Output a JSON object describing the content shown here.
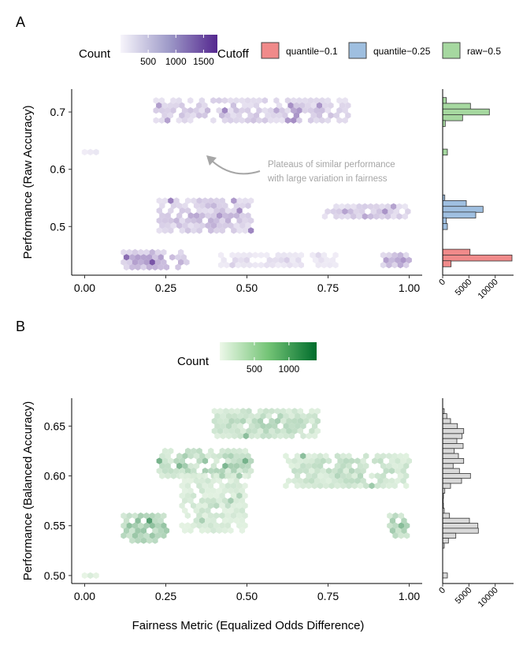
{
  "panel_labels": {
    "a": "A",
    "b": "B"
  },
  "shared": {
    "xlabel": "Fairness Metric (Equalized Odds Difference)",
    "x_ticks": [
      "0.00",
      "0.25",
      "0.50",
      "0.75",
      "1.00"
    ],
    "x_tick_values": [
      0,
      0.25,
      0.5,
      0.75,
      1.0
    ],
    "xlim": [
      -0.04,
      1.04
    ]
  },
  "legend_a": {
    "count_title": "Count",
    "count_ticks": [
      "500",
      "1000",
      "1500"
    ],
    "count_tick_values": [
      500,
      1000,
      1500
    ],
    "count_range": [
      0,
      1750
    ],
    "cutoff_title": "Cutoff",
    "cutoff_items": [
      {
        "label": "quantile−0.1",
        "color": "#F08A8A"
      },
      {
        "label": "quantile−0.25",
        "color": "#9FBFE0"
      },
      {
        "label": "raw−0.5",
        "color": "#A6D8A0"
      }
    ]
  },
  "legend_b": {
    "count_title": "Count",
    "count_ticks": [
      "500",
      "1000"
    ],
    "count_tick_values": [
      500,
      1000
    ],
    "count_range": [
      0,
      1400
    ]
  },
  "annotation_a": {
    "line1": "Plateaus of similar performance",
    "line2": "with large variation in fairness"
  },
  "colors": {
    "purple_low": "#F2F0F8",
    "purple_high": "#54278F",
    "green_low": "#EDF8E9",
    "green_high": "#006D2C",
    "hist_b": "#D9D9D9",
    "annotation": "#A6A6A6"
  },
  "chart_data": [
    {
      "type": "heatmap",
      "panel": "A",
      "title": "",
      "xlabel": "Fairness Metric (Equalized Odds Difference)",
      "ylabel": "Performance (Raw Accuracy)",
      "y_ticks": [
        "0.5",
        "0.6",
        "0.7"
      ],
      "y_tick_values": [
        0.5,
        0.6,
        0.7
      ],
      "ylim": [
        0.415,
        0.74
      ],
      "clusters": [
        {
          "x": [
            0.22,
            0.82
          ],
          "y": [
            0.68,
            0.72
          ],
          "peak": 900
        },
        {
          "x": [
            0.0,
            0.05
          ],
          "y": [
            0.625,
            0.63
          ],
          "peak": 250
        },
        {
          "x": [
            0.23,
            0.52
          ],
          "y": [
            0.49,
            0.545
          ],
          "peak": 1100
        },
        {
          "x": [
            0.74,
            1.0
          ],
          "y": [
            0.51,
            0.535
          ],
          "peak": 800
        },
        {
          "x": [
            0.12,
            0.32
          ],
          "y": [
            0.425,
            0.455
          ],
          "peak": 1700
        },
        {
          "x": [
            0.42,
            0.78
          ],
          "y": [
            0.43,
            0.45
          ],
          "peak": 250
        },
        {
          "x": [
            0.92,
            1.0
          ],
          "y": [
            0.43,
            0.45
          ],
          "peak": 1700
        }
      ],
      "marginal_histogram": {
        "x_ticks": [
          "0",
          "5000",
          "10000"
        ],
        "x_tick_values": [
          0,
          5000,
          10000
        ],
        "xlim": [
          0,
          13500
        ],
        "bars": [
          {
            "y": 0.72,
            "count": 700,
            "series": "raw−0.5"
          },
          {
            "y": 0.71,
            "count": 5300,
            "series": "raw−0.5"
          },
          {
            "y": 0.7,
            "count": 8900,
            "series": "raw−0.5"
          },
          {
            "y": 0.69,
            "count": 3800,
            "series": "raw−0.5"
          },
          {
            "y": 0.68,
            "count": 500,
            "series": "raw−0.5"
          },
          {
            "y": 0.63,
            "count": 900,
            "series": "raw−0.5"
          },
          {
            "y": 0.55,
            "count": 400,
            "series": "quantile−0.25"
          },
          {
            "y": 0.54,
            "count": 4500,
            "series": "quantile−0.25"
          },
          {
            "y": 0.53,
            "count": 7700,
            "series": "quantile−0.25"
          },
          {
            "y": 0.52,
            "count": 6300,
            "series": "quantile−0.25"
          },
          {
            "y": 0.51,
            "count": 700,
            "series": "quantile−0.25"
          },
          {
            "y": 0.5,
            "count": 900,
            "series": "quantile−0.25"
          },
          {
            "y": 0.455,
            "count": 5200,
            "series": "quantile−0.1"
          },
          {
            "y": 0.445,
            "count": 13200,
            "series": "quantile−0.1"
          },
          {
            "y": 0.435,
            "count": 1600,
            "series": "quantile−0.1"
          }
        ]
      }
    },
    {
      "type": "heatmap",
      "panel": "B",
      "title": "",
      "xlabel": "Fairness Metric (Equalized Odds Difference)",
      "ylabel": "Performance (Balanced Accuracy)",
      "y_ticks": [
        "0.50",
        "0.55",
        "0.60",
        "0.65"
      ],
      "y_tick_values": [
        0.5,
        0.55,
        0.6,
        0.65
      ],
      "ylim": [
        0.492,
        0.678
      ],
      "clusters": [
        {
          "x": [
            0.0,
            0.05
          ],
          "y": [
            0.498,
            0.5
          ],
          "peak": 300
        },
        {
          "x": [
            0.12,
            0.26
          ],
          "y": [
            0.535,
            0.56
          ],
          "peak": 1350
        },
        {
          "x": [
            0.94,
            1.0
          ],
          "y": [
            0.54,
            0.56
          ],
          "peak": 1100
        },
        {
          "x": [
            0.23,
            0.52
          ],
          "y": [
            0.6,
            0.625
          ],
          "peak": 900
        },
        {
          "x": [
            0.4,
            0.72
          ],
          "y": [
            0.64,
            0.665
          ],
          "peak": 700
        },
        {
          "x": [
            0.62,
            1.0
          ],
          "y": [
            0.59,
            0.62
          ],
          "peak": 600
        },
        {
          "x": [
            0.3,
            0.5
          ],
          "y": [
            0.545,
            0.6
          ],
          "peak": 400
        }
      ],
      "marginal_histogram": {
        "x_ticks": [
          "0",
          "5000",
          "10000"
        ],
        "x_tick_values": [
          0,
          5000,
          10000
        ],
        "xlim": [
          0,
          13500
        ],
        "bars": [
          {
            "y": 0.665,
            "count": 300
          },
          {
            "y": 0.66,
            "count": 800
          },
          {
            "y": 0.655,
            "count": 1500
          },
          {
            "y": 0.65,
            "count": 2800
          },
          {
            "y": 0.645,
            "count": 4000
          },
          {
            "y": 0.64,
            "count": 3700
          },
          {
            "y": 0.635,
            "count": 2700
          },
          {
            "y": 0.63,
            "count": 3900
          },
          {
            "y": 0.625,
            "count": 2200
          },
          {
            "y": 0.62,
            "count": 3000
          },
          {
            "y": 0.615,
            "count": 4000
          },
          {
            "y": 0.61,
            "count": 2000
          },
          {
            "y": 0.605,
            "count": 3200
          },
          {
            "y": 0.6,
            "count": 5300
          },
          {
            "y": 0.595,
            "count": 3600
          },
          {
            "y": 0.59,
            "count": 1500
          },
          {
            "y": 0.585,
            "count": 400
          },
          {
            "y": 0.58,
            "count": 150
          },
          {
            "y": 0.575,
            "count": 100
          },
          {
            "y": 0.57,
            "count": 150
          },
          {
            "y": 0.565,
            "count": 300
          },
          {
            "y": 0.56,
            "count": 1300
          },
          {
            "y": 0.555,
            "count": 5100
          },
          {
            "y": 0.55,
            "count": 6700
          },
          {
            "y": 0.545,
            "count": 6800
          },
          {
            "y": 0.54,
            "count": 2500
          },
          {
            "y": 0.535,
            "count": 1100
          },
          {
            "y": 0.53,
            "count": 300
          },
          {
            "y": 0.5,
            "count": 900
          }
        ]
      }
    }
  ]
}
